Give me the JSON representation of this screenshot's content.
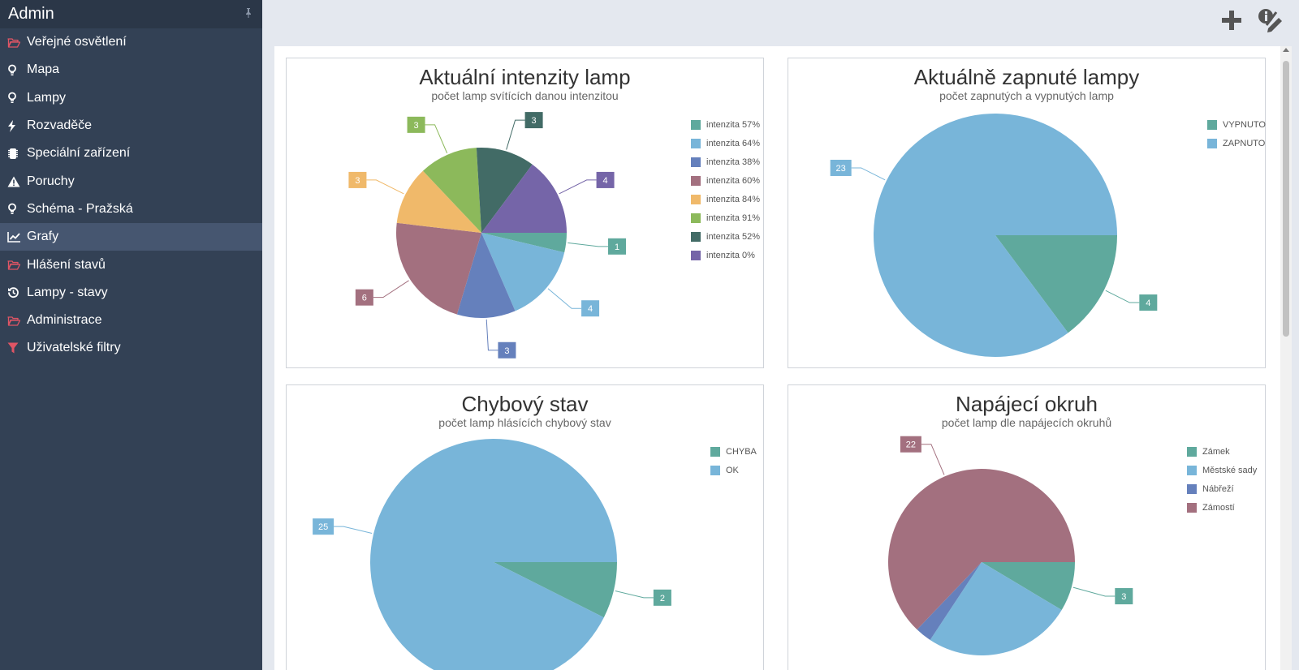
{
  "sidebar": {
    "title": "Admin",
    "items": [
      {
        "label": "Veřejné osvětlení",
        "icon": "folder-open-icon",
        "icon_color": "#e05565",
        "active": false
      },
      {
        "label": "Mapa",
        "icon": "lightbulb-icon",
        "icon_color": "#ffffff",
        "active": false
      },
      {
        "label": "Lampy",
        "icon": "lightbulb-icon",
        "icon_color": "#ffffff",
        "active": false
      },
      {
        "label": "Rozvaděče",
        "icon": "bolt-icon",
        "icon_color": "#ffffff",
        "active": false
      },
      {
        "label": "Speciální zařízení",
        "icon": "chip-icon",
        "icon_color": "#ffffff",
        "active": false
      },
      {
        "label": "Poruchy",
        "icon": "warning-icon",
        "icon_color": "#ffffff",
        "active": false
      },
      {
        "label": "Schéma - Pražská",
        "icon": "lightbulb-icon",
        "icon_color": "#ffffff",
        "active": false
      },
      {
        "label": "Grafy",
        "icon": "line-chart-icon",
        "icon_color": "#ffffff",
        "active": true
      },
      {
        "label": "Hlášení stavů",
        "icon": "folder-open-icon",
        "icon_color": "#e05565",
        "active": false
      },
      {
        "label": "Lampy - stavy",
        "icon": "history-icon",
        "icon_color": "#ffffff",
        "active": false
      },
      {
        "label": "Administrace",
        "icon": "folder-open-icon",
        "icon_color": "#e05565",
        "active": false
      },
      {
        "label": "Uživatelské filtry",
        "icon": "filter-icon",
        "icon_color": "#e05565",
        "active": false
      }
    ]
  },
  "toolbar": {
    "add_icon": "plus-icon",
    "settings_icon": "info-pen-icon"
  },
  "chart_data": [
    {
      "type": "pie",
      "title": "Aktuální intenzity lamp",
      "subtitle": "počet lamp svítících danou intenzitou",
      "legend_position": "right",
      "slices": [
        {
          "label": "intenzita 57%",
          "value": 1,
          "color": "#5fa99d"
        },
        {
          "label": "intenzita 64%",
          "value": 4,
          "color": "#78b5d9"
        },
        {
          "label": "intenzita 38%",
          "value": 3,
          "color": "#6580bc"
        },
        {
          "label": "intenzita 60%",
          "value": 6,
          "color": "#a3707f"
        },
        {
          "label": "intenzita 84%",
          "value": 3,
          "color": "#f0b96a"
        },
        {
          "label": "intenzita 91%",
          "value": 3,
          "color": "#8cb95b"
        },
        {
          "label": "intenzita 52%",
          "value": 3,
          "color": "#426b66"
        },
        {
          "label": "intenzita 0%",
          "value": 4,
          "color": "#7565a8"
        }
      ]
    },
    {
      "type": "pie",
      "title": "Aktuálně zapnuté lampy",
      "subtitle": "počet zapnutých a vypnutých lamp",
      "legend_position": "right",
      "slices": [
        {
          "label": "VYPNUTO",
          "value": 4,
          "color": "#5fa99d"
        },
        {
          "label": "ZAPNUTO",
          "value": 23,
          "color": "#78b5d9"
        }
      ]
    },
    {
      "type": "pie",
      "title": "Chybový stav",
      "subtitle": "počet lamp hlásících chybový stav",
      "legend_position": "right",
      "slices": [
        {
          "label": "CHYBA",
          "value": 2,
          "color": "#5fa99d"
        },
        {
          "label": "OK",
          "value": 25,
          "color": "#78b5d9"
        }
      ]
    },
    {
      "type": "pie",
      "title": "Napájecí okruh",
      "subtitle": "počet lamp dle napájecích okruhů",
      "legend_position": "right",
      "slices": [
        {
          "label": "Zámek",
          "value": 3,
          "color": "#5fa99d"
        },
        {
          "label": "Městské sady",
          "value": 9,
          "color": "#78b5d9"
        },
        {
          "label": "Nábřeží",
          "value": 1,
          "color": "#6580bc"
        },
        {
          "label": "Zámostí",
          "value": 22,
          "color": "#a3707f"
        }
      ],
      "visible_labels": [
        "Zámek",
        "Zámostí"
      ]
    }
  ]
}
